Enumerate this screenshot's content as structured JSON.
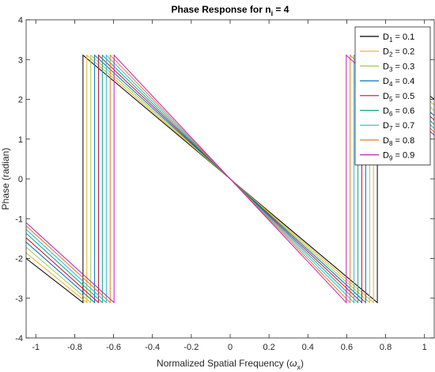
{
  "chart_data": {
    "type": "line",
    "title": "Phase Response for n",
    "title_subscript": "i",
    "title_suffix": " = 4",
    "xlabel": "Normalized Spatial Frequency (",
    "xlabel_symbol": "ω",
    "xlabel_subscript": "x",
    "xlabel_suffix": ")",
    "ylabel": "Phase (radian)",
    "xlim": [
      -1.05,
      1.05
    ],
    "ylim": [
      -4,
      4
    ],
    "xticks": [
      -1,
      -0.8,
      -0.6,
      -0.4,
      -0.2,
      0,
      0.2,
      0.4,
      0.6,
      0.8,
      1
    ],
    "xtick_labels": [
      "-1",
      "-0.8",
      "-0.6",
      "-0.4",
      "-0.2",
      "0",
      "0.2",
      "0.4",
      "0.6",
      "0.8",
      "1"
    ],
    "yticks": [
      -4,
      -3,
      -2,
      -1,
      0,
      1,
      2,
      3,
      4
    ],
    "ytick_labels": [
      "-4",
      "-3",
      "-2",
      "-1",
      "0",
      "1",
      "2",
      "3",
      "4"
    ],
    "grid": false,
    "box": true,
    "legend_placement": "top-right",
    "series": [
      {
        "name_prefix": "D",
        "name_sub": "1",
        "name_suffix": " = 0.1",
        "color": "#000000",
        "x": [
          -1.05,
          -0.7575,
          -0.7575,
          0.7575,
          0.7575,
          1.05
        ],
        "y": [
          -2.0,
          -3.11,
          3.11,
          -3.11,
          3.11,
          2.0
        ]
      },
      {
        "name_prefix": "D",
        "name_sub": "2",
        "name_suffix": " = 0.2",
        "color": "#EDB120",
        "x": [
          -1.05,
          -0.7375,
          -0.7375,
          0.7375,
          0.7375,
          1.05
        ],
        "y": [
          -1.86,
          -3.11,
          3.11,
          -3.11,
          3.11,
          1.86
        ]
      },
      {
        "name_prefix": "D",
        "name_sub": "3",
        "name_suffix": " = 0.3",
        "color": "#A2C94F",
        "x": [
          -1.05,
          -0.7175,
          -0.7175,
          0.7175,
          0.7175,
          1.05
        ],
        "y": [
          -1.72,
          -3.11,
          3.11,
          -3.11,
          3.11,
          1.72
        ]
      },
      {
        "name_prefix": "D",
        "name_sub": "4",
        "name_suffix": " = 0.4",
        "color": "#0072BD",
        "x": [
          -1.05,
          -0.6975,
          -0.6975,
          0.6975,
          0.6975,
          1.05
        ],
        "y": [
          -1.59,
          -3.11,
          3.11,
          -3.11,
          3.11,
          1.59
        ]
      },
      {
        "name_prefix": "D",
        "name_sub": "5",
        "name_suffix": " = 0.5",
        "color": "#C0143C",
        "x": [
          -1.05,
          -0.6775,
          -0.6775,
          0.6775,
          0.6775,
          1.05
        ],
        "y": [
          -1.48,
          -3.11,
          3.11,
          -3.11,
          3.11,
          1.48
        ]
      },
      {
        "name_prefix": "D",
        "name_sub": "6",
        "name_suffix": " = 0.6",
        "color": "#12A58C",
        "x": [
          -1.05,
          -0.6575,
          -0.6575,
          0.6575,
          0.6575,
          1.05
        ],
        "y": [
          -1.37,
          -3.11,
          3.11,
          -3.11,
          3.11,
          1.37
        ]
      },
      {
        "name_prefix": "D",
        "name_sub": "7",
        "name_suffix": " = 0.7",
        "color": "#32B4D2",
        "x": [
          -1.05,
          -0.6375,
          -0.6375,
          0.6375,
          0.6375,
          1.05
        ],
        "y": [
          -1.27,
          -3.11,
          3.11,
          -3.11,
          3.11,
          1.27
        ]
      },
      {
        "name_prefix": "D",
        "name_sub": "8",
        "name_suffix": " = 0.8",
        "color": "#E07B2A",
        "x": [
          -1.05,
          -0.6175,
          -0.6175,
          0.6175,
          0.6175,
          1.05
        ],
        "y": [
          -1.18,
          -3.11,
          3.11,
          -3.11,
          3.11,
          1.18
        ]
      },
      {
        "name_prefix": "D",
        "name_sub": "9",
        "name_suffix": " = 0.9",
        "color": "#C21FB4",
        "x": [
          -1.05,
          -0.5975,
          -0.5975,
          0.5975,
          0.5975,
          1.05
        ],
        "y": [
          -1.1,
          -3.11,
          3.11,
          -3.11,
          3.11,
          1.1
        ]
      }
    ]
  }
}
